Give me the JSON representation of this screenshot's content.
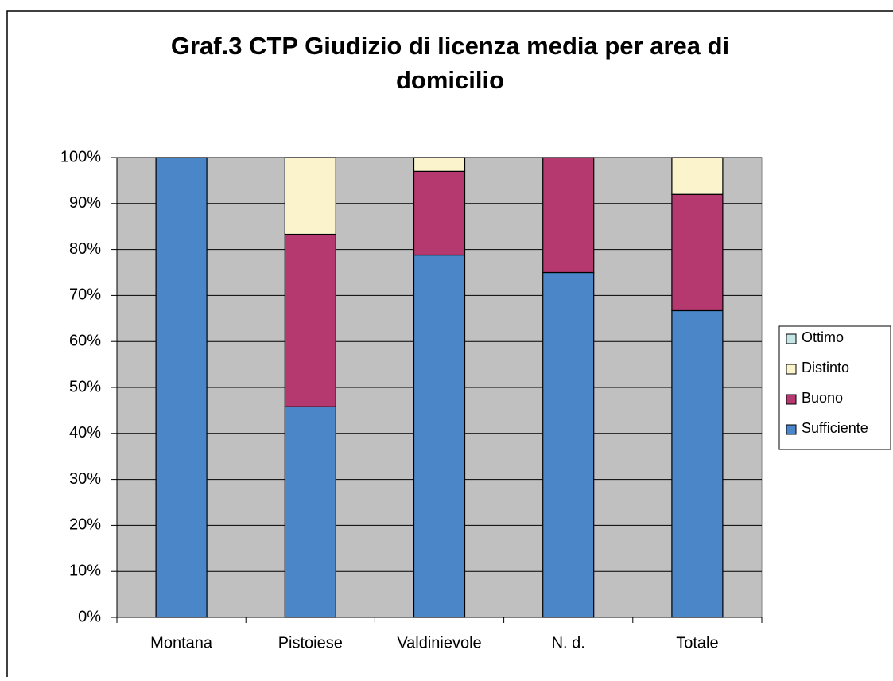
{
  "chart_data": {
    "type": "stacked_bar",
    "title": "Graf.3 CTP Giudizio di licenza media per area di domicilio",
    "categories": [
      "Montana",
      "Pistoiese",
      "Valdinievole",
      "N. d.",
      "Totale"
    ],
    "series": [
      {
        "name": "Sufficiente",
        "color": "#4a86c8",
        "values": [
          100,
          45.8,
          78.8,
          75,
          66.7
        ]
      },
      {
        "name": "Buono",
        "color": "#b5386f",
        "values": [
          0,
          37.5,
          18.2,
          25,
          25.3
        ]
      },
      {
        "name": "Distinto",
        "color": "#faf3cc",
        "values": [
          0,
          16.7,
          3.0,
          0,
          8.0
        ]
      },
      {
        "name": "Ottimo",
        "color": "#c6e6e6",
        "values": [
          0,
          0,
          0,
          0,
          0
        ]
      }
    ],
    "ylim": [
      0,
      100
    ],
    "yticks": [
      {
        "value": 0,
        "label": "0%"
      },
      {
        "value": 10,
        "label": "10%"
      },
      {
        "value": 20,
        "label": "20%"
      },
      {
        "value": 30,
        "label": "30%"
      },
      {
        "value": 40,
        "label": "40%"
      },
      {
        "value": 50,
        "label": "50%"
      },
      {
        "value": 60,
        "label": "60%"
      },
      {
        "value": 70,
        "label": "70%"
      },
      {
        "value": 80,
        "label": "80%"
      },
      {
        "value": 90,
        "label": "90%"
      },
      {
        "value": 100,
        "label": "100%"
      }
    ],
    "grid": true,
    "legend": "right"
  }
}
